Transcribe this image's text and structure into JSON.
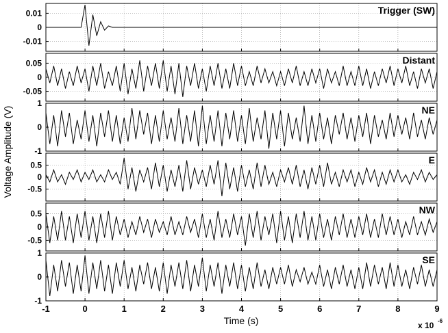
{
  "ylabel": "Voltage Amplitude (V)",
  "xlabel": "Time (s)",
  "x_multiplier": "x 10",
  "x_exponent": "-6",
  "chart_data": [
    {
      "type": "line",
      "title": "Trigger (SW)",
      "color": "#000000",
      "grid": true,
      "ylim": [
        -0.017,
        0.017
      ],
      "yticks": [
        0.01,
        0,
        -0.01
      ],
      "xlim": [
        -1,
        9
      ],
      "xticks": [
        -1,
        0,
        1,
        2,
        3,
        4,
        5,
        6,
        7,
        8,
        9
      ],
      "x": [
        -1,
        -0.9,
        -0.8,
        -0.7,
        -0.6,
        -0.5,
        -0.4,
        -0.3,
        -0.2,
        -0.1,
        0,
        0.1,
        0.2,
        0.3,
        0.4,
        0.5,
        0.6,
        0.7,
        0.8,
        0.9,
        1,
        1.1,
        1.2,
        1.3,
        1.4,
        1.5,
        1.6,
        1.7,
        1.8,
        1.9,
        2,
        2.1,
        2.2,
        2.3,
        2.4,
        2.5,
        2.6,
        2.7,
        2.8,
        2.9,
        3,
        3.1,
        3.2,
        3.3,
        3.4,
        3.5,
        3.6,
        3.7,
        3.8,
        3.9,
        4,
        4.1,
        4.2,
        4.3,
        4.4,
        4.5,
        4.6,
        4.7,
        4.8,
        4.9,
        5,
        5.1,
        5.2,
        5.3,
        5.4,
        5.5,
        5.6,
        5.7,
        5.8,
        5.9,
        6,
        6.1,
        6.2,
        6.3,
        6.4,
        6.5,
        6.6,
        6.7,
        6.8,
        6.9,
        7,
        7.1,
        7.2,
        7.3,
        7.4,
        7.5,
        7.6,
        7.7,
        7.8,
        7.9,
        8,
        8.1,
        8.2,
        8.3,
        8.4,
        8.5,
        8.6,
        8.7,
        8.8,
        8.9,
        9
      ],
      "values": [
        0,
        0,
        0,
        0,
        0,
        0,
        0,
        0,
        0,
        0,
        0.016,
        -0.013,
        0.009,
        -0.006,
        0.004,
        -0.002,
        0.001,
        0,
        0,
        0,
        0,
        0,
        0,
        0,
        0,
        0,
        0,
        0,
        0,
        0,
        0,
        0,
        0,
        0,
        0,
        0,
        0,
        0,
        0,
        0,
        0,
        0,
        0,
        0,
        0,
        0,
        0,
        0,
        0,
        0,
        0,
        0,
        0,
        0,
        0,
        0,
        0,
        0,
        0,
        0,
        0,
        0,
        0,
        0,
        0,
        0,
        0,
        0,
        0,
        0,
        0,
        0,
        0,
        0,
        0,
        0,
        0,
        0,
        0,
        0,
        0,
        0,
        0,
        0,
        0,
        0,
        0,
        0,
        0,
        0,
        0,
        0,
        0,
        0,
        0,
        0,
        0,
        0,
        0,
        0,
        0
      ]
    },
    {
      "type": "line",
      "title": "Distant",
      "color": "#000000",
      "grid": true,
      "ylim": [
        -0.085,
        0.085
      ],
      "yticks": [
        0.05,
        0,
        -0.05
      ],
      "xlim": [
        -1,
        9
      ],
      "xticks": [
        -1,
        0,
        1,
        2,
        3,
        4,
        5,
        6,
        7,
        8,
        9
      ],
      "x": [
        -1,
        -0.9,
        -0.8,
        -0.7,
        -0.6,
        -0.5,
        -0.4,
        -0.3,
        -0.2,
        -0.1,
        0,
        0.1,
        0.2,
        0.3,
        0.4,
        0.5,
        0.6,
        0.7,
        0.8,
        0.9,
        1,
        1.1,
        1.2,
        1.3,
        1.4,
        1.5,
        1.6,
        1.7,
        1.8,
        1.9,
        2,
        2.1,
        2.2,
        2.3,
        2.4,
        2.5,
        2.6,
        2.7,
        2.8,
        2.9,
        3,
        3.1,
        3.2,
        3.3,
        3.4,
        3.5,
        3.6,
        3.7,
        3.8,
        3.9,
        4,
        4.1,
        4.2,
        4.3,
        4.4,
        4.5,
        4.6,
        4.7,
        4.8,
        4.9,
        5,
        5.1,
        5.2,
        5.3,
        5.4,
        5.5,
        5.6,
        5.7,
        5.8,
        5.9,
        6,
        6.1,
        6.2,
        6.3,
        6.4,
        6.5,
        6.6,
        6.7,
        6.8,
        6.9,
        7,
        7.1,
        7.2,
        7.3,
        7.4,
        7.5,
        7.6,
        7.7,
        7.8,
        7.9,
        8,
        8.1,
        8.2,
        8.3,
        8.4,
        8.5,
        8.6,
        8.7,
        8.8,
        8.9,
        9
      ],
      "values": [
        0.03,
        -0.02,
        0.04,
        -0.03,
        0.03,
        -0.04,
        0.02,
        -0.03,
        0.04,
        -0.02,
        0.03,
        -0.05,
        0.04,
        -0.03,
        0.05,
        -0.04,
        0.02,
        -0.03,
        0.04,
        -0.05,
        0.05,
        -0.06,
        0.03,
        -0.04,
        0.06,
        -0.05,
        0.04,
        -0.03,
        0.05,
        -0.04,
        0.06,
        -0.05,
        0.04,
        -0.06,
        0.05,
        -0.07,
        0.04,
        -0.03,
        0.05,
        -0.04,
        0.03,
        -0.05,
        0.04,
        -0.03,
        0.05,
        -0.04,
        0.03,
        -0.04,
        0.05,
        -0.03,
        0.04,
        -0.03,
        0.02,
        -0.03,
        0.04,
        -0.02,
        0.03,
        -0.02,
        0.02,
        -0.03,
        0.02,
        -0.03,
        0.03,
        -0.02,
        0.04,
        -0.03,
        0.02,
        -0.03,
        0.03,
        -0.02,
        0.03,
        -0.04,
        0.03,
        -0.02,
        0.02,
        -0.03,
        0.04,
        -0.03,
        0.02,
        -0.03,
        0.04,
        -0.03,
        0.03,
        -0.04,
        0.02,
        -0.03,
        0.03,
        -0.02,
        0.04,
        -0.03,
        0.03,
        -0.02,
        0.04,
        -0.03,
        0.02,
        -0.04,
        0.03,
        -0.02,
        0.03,
        -0.04,
        0.02
      ]
    },
    {
      "type": "line",
      "title": "NE",
      "color": "#000000",
      "grid": true,
      "ylim": [
        -1,
        1
      ],
      "yticks": [
        1,
        0,
        -1
      ],
      "xlim": [
        -1,
        9
      ],
      "xticks": [
        -1,
        0,
        1,
        2,
        3,
        4,
        5,
        6,
        7,
        8,
        9
      ],
      "x": [
        -1,
        -0.9,
        -0.8,
        -0.7,
        -0.6,
        -0.5,
        -0.4,
        -0.3,
        -0.2,
        -0.1,
        0,
        0.1,
        0.2,
        0.3,
        0.4,
        0.5,
        0.6,
        0.7,
        0.8,
        0.9,
        1,
        1.1,
        1.2,
        1.3,
        1.4,
        1.5,
        1.6,
        1.7,
        1.8,
        1.9,
        2,
        2.1,
        2.2,
        2.3,
        2.4,
        2.5,
        2.6,
        2.7,
        2.8,
        2.9,
        3,
        3.1,
        3.2,
        3.3,
        3.4,
        3.5,
        3.6,
        3.7,
        3.8,
        3.9,
        4,
        4.1,
        4.2,
        4.3,
        4.4,
        4.5,
        4.6,
        4.7,
        4.8,
        4.9,
        5,
        5.1,
        5.2,
        5.3,
        5.4,
        5.5,
        5.6,
        5.7,
        5.8,
        5.9,
        6,
        6.1,
        6.2,
        6.3,
        6.4,
        6.5,
        6.6,
        6.7,
        6.8,
        6.9,
        7,
        7.1,
        7.2,
        7.3,
        7.4,
        7.5,
        7.6,
        7.7,
        7.8,
        7.9,
        8,
        8.1,
        8.2,
        8.3,
        8.4,
        8.5,
        8.6,
        8.7,
        8.8,
        8.9,
        9
      ],
      "values": [
        0.6,
        -0.7,
        0.5,
        -0.8,
        0.7,
        -0.4,
        0.6,
        -0.7,
        0.3,
        -0.5,
        0.7,
        -0.6,
        0.5,
        -0.8,
        0.6,
        -0.4,
        0.7,
        -0.6,
        0.5,
        -0.7,
        0.4,
        -0.6,
        0.8,
        -0.5,
        0.7,
        -0.3,
        0.6,
        -0.7,
        0.5,
        -0.6,
        0.7,
        -0.5,
        0.4,
        -0.6,
        0.8,
        -0.7,
        0.5,
        -0.6,
        0.7,
        -0.8,
        0.9,
        -0.7,
        0.5,
        -0.6,
        0.7,
        -0.8,
        0.6,
        -0.5,
        0.7,
        -0.6,
        0.5,
        -0.7,
        0.8,
        -0.6,
        0.4,
        -0.5,
        0.7,
        -0.9,
        0.6,
        -0.5,
        0.7,
        -0.8,
        0.6,
        -0.5,
        0.4,
        -0.6,
        0.9,
        -0.7,
        0.5,
        -0.6,
        0.6,
        -0.5,
        0.4,
        -0.7,
        0.5,
        -0.3,
        0.6,
        -0.5,
        0.4,
        -0.6,
        0.5,
        -0.4,
        0.6,
        -0.7,
        0.5,
        -0.4,
        0.3,
        -0.5,
        0.6,
        -0.4,
        0.5,
        -0.3,
        0.4,
        -0.5,
        0.6,
        -0.4,
        0.3,
        -0.5,
        0.4,
        -0.3,
        0.3
      ]
    },
    {
      "type": "line",
      "title": "E",
      "color": "#000000",
      "grid": true,
      "ylim": [
        -1,
        1
      ],
      "yticks": [
        0.5,
        0,
        -0.5
      ],
      "xlim": [
        -1,
        9
      ],
      "xticks": [
        -1,
        0,
        1,
        2,
        3,
        4,
        5,
        6,
        7,
        8,
        9
      ],
      "x": [
        -1,
        -0.9,
        -0.8,
        -0.7,
        -0.6,
        -0.5,
        -0.4,
        -0.3,
        -0.2,
        -0.1,
        0,
        0.1,
        0.2,
        0.3,
        0.4,
        0.5,
        0.6,
        0.7,
        0.8,
        0.9,
        1,
        1.1,
        1.2,
        1.3,
        1.4,
        1.5,
        1.6,
        1.7,
        1.8,
        1.9,
        2,
        2.1,
        2.2,
        2.3,
        2.4,
        2.5,
        2.6,
        2.7,
        2.8,
        2.9,
        3,
        3.1,
        3.2,
        3.3,
        3.4,
        3.5,
        3.6,
        3.7,
        3.8,
        3.9,
        4,
        4.1,
        4.2,
        4.3,
        4.4,
        4.5,
        4.6,
        4.7,
        4.8,
        4.9,
        5,
        5.1,
        5.2,
        5.3,
        5.4,
        5.5,
        5.6,
        5.7,
        5.8,
        5.9,
        6,
        6.1,
        6.2,
        6.3,
        6.4,
        6.5,
        6.6,
        6.7,
        6.8,
        6.9,
        7,
        7.1,
        7.2,
        7.3,
        7.4,
        7.5,
        7.6,
        7.7,
        7.8,
        7.9,
        8,
        8.1,
        8.2,
        8.3,
        8.4,
        8.5,
        8.6,
        8.7,
        8.8,
        8.9,
        9
      ],
      "values": [
        0.1,
        -0.2,
        0.3,
        -0.2,
        0.1,
        -0.3,
        0.2,
        -0.1,
        0.3,
        -0.2,
        0.2,
        -0.1,
        0.3,
        -0.2,
        0.1,
        -0.2,
        0.3,
        -0.1,
        0.2,
        -0.3,
        0.8,
        -0.5,
        0.4,
        -0.6,
        0.3,
        -0.2,
        0.4,
        -0.5,
        0.6,
        -0.4,
        0.5,
        -0.6,
        0.3,
        -0.4,
        0.5,
        -0.6,
        0.7,
        -0.5,
        0.4,
        -0.3,
        0.3,
        -0.4,
        0.5,
        -0.3,
        0.7,
        -0.8,
        0.6,
        -0.5,
        0.4,
        -0.6,
        0.5,
        -0.4,
        0.3,
        -0.5,
        0.6,
        -0.4,
        0.5,
        -0.3,
        0.2,
        -0.4,
        0.3,
        -0.2,
        0.4,
        -0.3,
        0.5,
        -0.4,
        0.3,
        -0.5,
        0.4,
        -0.3,
        0.5,
        -0.4,
        0.6,
        -0.3,
        0.2,
        -0.4,
        0.3,
        -0.2,
        0.3,
        -0.4,
        0.2,
        -0.3,
        0.4,
        -0.2,
        0.3,
        -0.4,
        0.2,
        -0.3,
        0.3,
        -0.2,
        0.3,
        -0.2,
        0.1,
        -0.3,
        0.2,
        -0.1,
        0.3,
        -0.2,
        0.2,
        -0.1,
        0.1
      ]
    },
    {
      "type": "line",
      "title": "NW",
      "color": "#000000",
      "grid": true,
      "ylim": [
        -0.9,
        0.9
      ],
      "yticks": [
        0.5,
        0,
        -0.5
      ],
      "xlim": [
        -1,
        9
      ],
      "xticks": [
        -1,
        0,
        1,
        2,
        3,
        4,
        5,
        6,
        7,
        8,
        9
      ],
      "x": [
        -1,
        -0.9,
        -0.8,
        -0.7,
        -0.6,
        -0.5,
        -0.4,
        -0.3,
        -0.2,
        -0.1,
        0,
        0.1,
        0.2,
        0.3,
        0.4,
        0.5,
        0.6,
        0.7,
        0.8,
        0.9,
        1,
        1.1,
        1.2,
        1.3,
        1.4,
        1.5,
        1.6,
        1.7,
        1.8,
        1.9,
        2,
        2.1,
        2.2,
        2.3,
        2.4,
        2.5,
        2.6,
        2.7,
        2.8,
        2.9,
        3,
        3.1,
        3.2,
        3.3,
        3.4,
        3.5,
        3.6,
        3.7,
        3.8,
        3.9,
        4,
        4.1,
        4.2,
        4.3,
        4.4,
        4.5,
        4.6,
        4.7,
        4.8,
        4.9,
        5,
        5.1,
        5.2,
        5.3,
        5.4,
        5.5,
        5.6,
        5.7,
        5.8,
        5.9,
        6,
        6.1,
        6.2,
        6.3,
        6.4,
        6.5,
        6.6,
        6.7,
        6.8,
        6.9,
        7,
        7.1,
        7.2,
        7.3,
        7.4,
        7.5,
        7.6,
        7.7,
        7.8,
        7.9,
        8,
        8.1,
        8.2,
        8.3,
        8.4,
        8.5,
        8.6,
        8.7,
        8.8,
        8.9,
        9
      ],
      "values": [
        0.5,
        -0.6,
        0.4,
        -0.5,
        0.6,
        -0.5,
        0.4,
        -0.6,
        0.5,
        -0.4,
        0.6,
        -0.5,
        0.4,
        -0.6,
        0.5,
        -0.4,
        0.6,
        -0.5,
        0.4,
        -0.3,
        0.3,
        -0.4,
        0.2,
        -0.3,
        0.4,
        -0.2,
        0.3,
        -0.4,
        0.3,
        -0.2,
        0.2,
        -0.3,
        0.4,
        -0.3,
        0.2,
        -0.3,
        0.4,
        -0.2,
        0.3,
        -0.4,
        0.5,
        -0.4,
        0.3,
        -0.5,
        0.6,
        -0.4,
        0.3,
        -0.4,
        0.5,
        -0.3,
        0.4,
        -0.7,
        0.5,
        -0.4,
        0.6,
        -0.5,
        0.4,
        -0.3,
        0.5,
        -0.6,
        0.6,
        -0.5,
        0.4,
        -0.6,
        0.5,
        -0.4,
        0.6,
        -0.5,
        0.4,
        -0.5,
        0.5,
        -0.4,
        0.3,
        -0.5,
        0.4,
        -0.3,
        0.5,
        -0.4,
        0.3,
        -0.4,
        0.4,
        -0.3,
        0.5,
        -0.4,
        0.3,
        -0.4,
        0.5,
        -0.3,
        0.4,
        -0.3,
        0.3,
        -0.4,
        0.2,
        -0.3,
        0.4,
        -0.3,
        0.2,
        -0.3,
        0.3,
        -0.2,
        0.2
      ]
    },
    {
      "type": "line",
      "title": "SE",
      "color": "#000000",
      "grid": true,
      "ylim": [
        -1,
        1
      ],
      "yticks": [
        1,
        0,
        -1
      ],
      "xlim": [
        -1,
        9
      ],
      "xticks": [
        -1,
        0,
        1,
        2,
        3,
        4,
        5,
        6,
        7,
        8,
        9
      ],
      "show_xticklabels": true,
      "x": [
        -1,
        -0.9,
        -0.8,
        -0.7,
        -0.6,
        -0.5,
        -0.4,
        -0.3,
        -0.2,
        -0.1,
        0,
        0.1,
        0.2,
        0.3,
        0.4,
        0.5,
        0.6,
        0.7,
        0.8,
        0.9,
        1,
        1.1,
        1.2,
        1.3,
        1.4,
        1.5,
        1.6,
        1.7,
        1.8,
        1.9,
        2,
        2.1,
        2.2,
        2.3,
        2.4,
        2.5,
        2.6,
        2.7,
        2.8,
        2.9,
        3,
        3.1,
        3.2,
        3.3,
        3.4,
        3.5,
        3.6,
        3.7,
        3.8,
        3.9,
        4,
        4.1,
        4.2,
        4.3,
        4.4,
        4.5,
        4.6,
        4.7,
        4.8,
        4.9,
        5,
        5.1,
        5.2,
        5.3,
        5.4,
        5.5,
        5.6,
        5.7,
        5.8,
        5.9,
        6,
        6.1,
        6.2,
        6.3,
        6.4,
        6.5,
        6.6,
        6.7,
        6.8,
        6.9,
        7,
        7.1,
        7.2,
        7.3,
        7.4,
        7.5,
        7.6,
        7.7,
        7.8,
        7.9,
        8,
        8.1,
        8.2,
        8.3,
        8.4,
        8.5,
        8.6,
        8.7,
        8.8,
        8.9,
        9
      ],
      "values": [
        0.7,
        -0.8,
        0.5,
        -0.6,
        0.7,
        -0.4,
        0.6,
        -0.7,
        0.5,
        -0.6,
        0.9,
        -0.7,
        0.6,
        -0.5,
        0.7,
        -0.6,
        0.5,
        -0.7,
        0.6,
        -0.4,
        0.7,
        -0.5,
        0.4,
        -0.6,
        0.5,
        -0.3,
        0.6,
        -0.5,
        0.4,
        -0.6,
        0.6,
        -0.7,
        0.5,
        -0.4,
        0.6,
        -0.5,
        0.7,
        -0.6,
        0.5,
        -0.4,
        0.8,
        -0.6,
        0.5,
        -0.4,
        0.6,
        -0.7,
        0.5,
        -0.4,
        0.6,
        -0.5,
        0.5,
        -0.6,
        0.4,
        -0.5,
        0.6,
        -0.4,
        0.3,
        -0.5,
        0.4,
        -0.3,
        0.4,
        -0.3,
        0.5,
        -0.4,
        0.3,
        -0.2,
        0.4,
        -0.3,
        0.2,
        -0.3,
        0.5,
        -0.4,
        0.3,
        -0.5,
        0.4,
        -0.3,
        0.5,
        -0.4,
        0.3,
        -0.5,
        0.4,
        -0.5,
        0.6,
        -0.4,
        0.5,
        -0.3,
        0.4,
        -0.5,
        0.6,
        -0.4,
        0.5,
        -0.4,
        0.3,
        -0.5,
        0.4,
        -0.3,
        0.5,
        -0.4,
        0.3,
        -0.4,
        0.3
      ]
    }
  ]
}
